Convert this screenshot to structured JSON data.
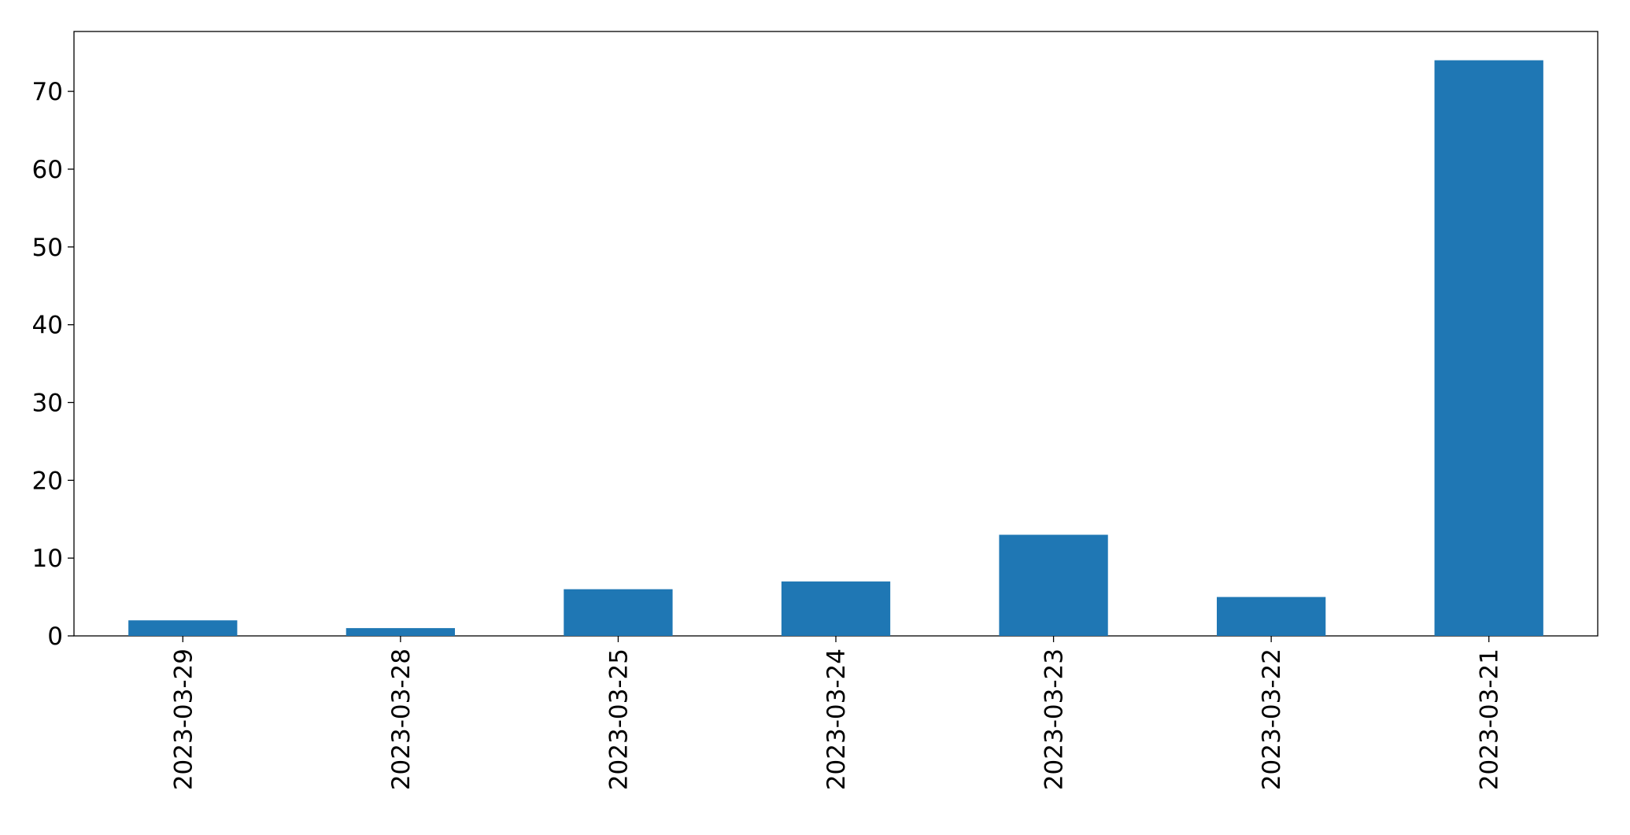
{
  "chart_data": {
    "type": "bar",
    "categories": [
      "2023-03-29",
      "2023-03-28",
      "2023-03-25",
      "2023-03-24",
      "2023-03-23",
      "2023-03-22",
      "2023-03-21"
    ],
    "values": [
      2,
      1,
      6,
      7,
      13,
      5,
      74
    ],
    "color": "#1f77b4",
    "ylim": [
      0,
      77.7
    ],
    "yticks": [
      0,
      10,
      20,
      30,
      40,
      50,
      60,
      70
    ],
    "grid": false
  }
}
